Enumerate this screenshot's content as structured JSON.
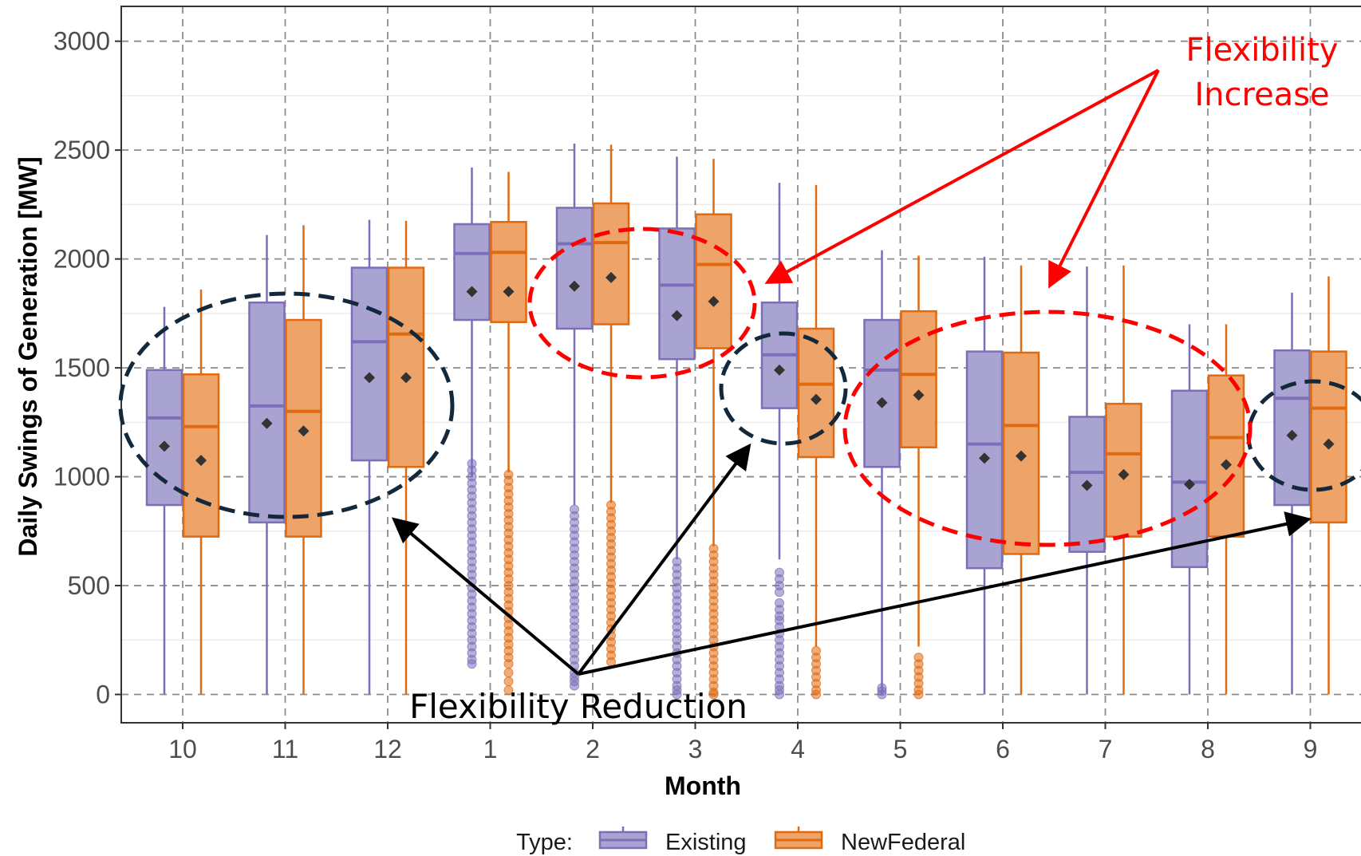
{
  "chart_data": {
    "type": "boxplot",
    "xlabel": "Month",
    "ylabel": "Daily Swings of Generation [MW]",
    "ylim": [
      -130,
      3160
    ],
    "y_ticks": [
      0,
      500,
      1000,
      1500,
      2000,
      2500,
      3000
    ],
    "categories": [
      "10",
      "11",
      "12",
      "1",
      "2",
      "3",
      "4",
      "5",
      "6",
      "7",
      "8",
      "9"
    ],
    "grid": "dashed major gridlines",
    "legend": {
      "title": "Type:",
      "position": "bottom",
      "entries": [
        "Existing",
        "NewFederal"
      ]
    },
    "series": [
      {
        "name": "Existing",
        "color": "#7b6fb8",
        "fill": "#a9a3d2",
        "boxes": [
          {
            "month": "10",
            "min": 0,
            "q1": 870,
            "median": 1270,
            "q3": 1490,
            "max": 1780,
            "mean": 1140,
            "outliers": []
          },
          {
            "month": "11",
            "min": 0,
            "q1": 790,
            "median": 1325,
            "q3": 1800,
            "max": 2110,
            "mean": 1245,
            "outliers": []
          },
          {
            "month": "12",
            "min": 0,
            "q1": 1075,
            "median": 1620,
            "q3": 1960,
            "max": 2180,
            "mean": 1455,
            "outliers": []
          },
          {
            "month": "1",
            "min": 1000,
            "q1": 1720,
            "median": 2025,
            "q3": 2160,
            "max": 2420,
            "mean": 1850,
            "outliers": [
              1060,
              1030,
              1000,
              970,
              940,
              910,
              880,
              850,
              820,
              790,
              760,
              730,
              700,
              670,
              640,
              610,
              580,
              550,
              520,
              490,
              460,
              430,
              400,
              370,
              340,
              310,
              280,
              250,
              220,
              190,
              160,
              140
            ]
          },
          {
            "month": "2",
            "min": 870,
            "q1": 1680,
            "median": 2070,
            "q3": 2235,
            "max": 2530,
            "mean": 1875,
            "outliers": [
              850,
              820,
              790,
              760,
              730,
              700,
              670,
              640,
              610,
              580,
              550,
              520,
              490,
              460,
              430,
              400,
              370,
              340,
              310,
              280,
              250,
              220,
              190,
              160,
              130,
              100,
              80,
              60,
              40
            ]
          },
          {
            "month": "3",
            "min": 620,
            "q1": 1540,
            "median": 1880,
            "q3": 2140,
            "max": 2470,
            "mean": 1740,
            "outliers": [
              610,
              580,
              550,
              520,
              490,
              460,
              430,
              400,
              370,
              340,
              310,
              280,
              250,
              220,
              190,
              160,
              130,
              100,
              70,
              40,
              20,
              0
            ]
          },
          {
            "month": "4",
            "min": 620,
            "q1": 1315,
            "median": 1560,
            "q3": 1800,
            "max": 2350,
            "mean": 1490,
            "outliers": [
              560,
              530,
              500,
              470,
              420,
              390,
              360,
              340,
              310,
              280,
              250,
              220,
              190,
              160,
              130,
              100,
              70,
              40,
              20,
              0
            ]
          },
          {
            "month": "5",
            "min": 0,
            "q1": 1045,
            "median": 1490,
            "q3": 1720,
            "max": 2040,
            "mean": 1340,
            "outliers": [
              30,
              15,
              0
            ]
          },
          {
            "month": "6",
            "min": 0,
            "q1": 580,
            "median": 1150,
            "q3": 1575,
            "max": 2010,
            "mean": 1085,
            "outliers": []
          },
          {
            "month": "7",
            "min": 0,
            "q1": 655,
            "median": 1020,
            "q3": 1275,
            "max": 1965,
            "mean": 960,
            "outliers": []
          },
          {
            "month": "8",
            "min": 0,
            "q1": 585,
            "median": 975,
            "q3": 1395,
            "max": 1700,
            "mean": 965,
            "outliers": []
          },
          {
            "month": "9",
            "min": 0,
            "q1": 870,
            "median": 1360,
            "q3": 1580,
            "max": 1845,
            "mean": 1190,
            "outliers": []
          }
        ]
      },
      {
        "name": "NewFederal",
        "color": "#e06a10",
        "fill": "#eea368",
        "boxes": [
          {
            "month": "10",
            "min": 0,
            "q1": 725,
            "median": 1230,
            "q3": 1470,
            "max": 1860,
            "mean": 1075,
            "outliers": []
          },
          {
            "month": "11",
            "min": 0,
            "q1": 725,
            "median": 1300,
            "q3": 1720,
            "max": 2155,
            "mean": 1210,
            "outliers": []
          },
          {
            "month": "12",
            "min": 0,
            "q1": 1045,
            "median": 1655,
            "q3": 1960,
            "max": 2175,
            "mean": 1455,
            "outliers": []
          },
          {
            "month": "1",
            "min": 1020,
            "q1": 1710,
            "median": 2030,
            "q3": 2170,
            "max": 2400,
            "mean": 1850,
            "outliers": [
              1010,
              980,
              950,
              920,
              890,
              860,
              830,
              800,
              770,
              740,
              710,
              680,
              650,
              620,
              590,
              560,
              530,
              500,
              470,
              440,
              410,
              380,
              350,
              320,
              290,
              260,
              230,
              200,
              170,
              140,
              100,
              60,
              20
            ]
          },
          {
            "month": "2",
            "min": 880,
            "q1": 1700,
            "median": 2075,
            "q3": 2255,
            "max": 2525,
            "mean": 1915,
            "outliers": [
              870,
              840,
              810,
              780,
              750,
              720,
              690,
              660,
              630,
              600,
              570,
              540,
              510,
              480,
              450,
              420,
              390,
              360,
              330,
              300,
              270,
              240,
              210,
              180,
              150
            ]
          },
          {
            "month": "3",
            "min": 680,
            "q1": 1590,
            "median": 1975,
            "q3": 2205,
            "max": 2460,
            "mean": 1805,
            "outliers": [
              670,
              640,
              610,
              580,
              550,
              520,
              490,
              460,
              430,
              400,
              370,
              340,
              310,
              280,
              250,
              220,
              190,
              160,
              130,
              100,
              70,
              40,
              10,
              0
            ]
          },
          {
            "month": "4",
            "min": 220,
            "q1": 1090,
            "median": 1425,
            "q3": 1680,
            "max": 2340,
            "mean": 1355,
            "outliers": [
              200,
              170,
              140,
              110,
              80,
              50,
              20,
              0
            ]
          },
          {
            "month": "5",
            "min": 220,
            "q1": 1135,
            "median": 1470,
            "q3": 1760,
            "max": 2015,
            "mean": 1375,
            "outliers": [
              170,
              140,
              110,
              80,
              50,
              20,
              0
            ]
          },
          {
            "month": "6",
            "min": 0,
            "q1": 645,
            "median": 1235,
            "q3": 1570,
            "max": 1970,
            "mean": 1095,
            "outliers": []
          },
          {
            "month": "7",
            "min": 0,
            "q1": 725,
            "median": 1105,
            "q3": 1335,
            "max": 1970,
            "mean": 1010,
            "outliers": []
          },
          {
            "month": "8",
            "min": 0,
            "q1": 725,
            "median": 1180,
            "q3": 1465,
            "max": 1700,
            "mean": 1055,
            "outliers": []
          },
          {
            "month": "9",
            "min": 0,
            "q1": 790,
            "median": 1315,
            "q3": 1575,
            "max": 1920,
            "mean": 1150,
            "outliers": []
          }
        ]
      }
    ],
    "annotations": {
      "increase": {
        "line1": "Flexibility",
        "line2": "Increase",
        "color": "#ff0000"
      },
      "reduction": {
        "text": "Flexibility Reduction",
        "color": "#000000"
      }
    }
  }
}
